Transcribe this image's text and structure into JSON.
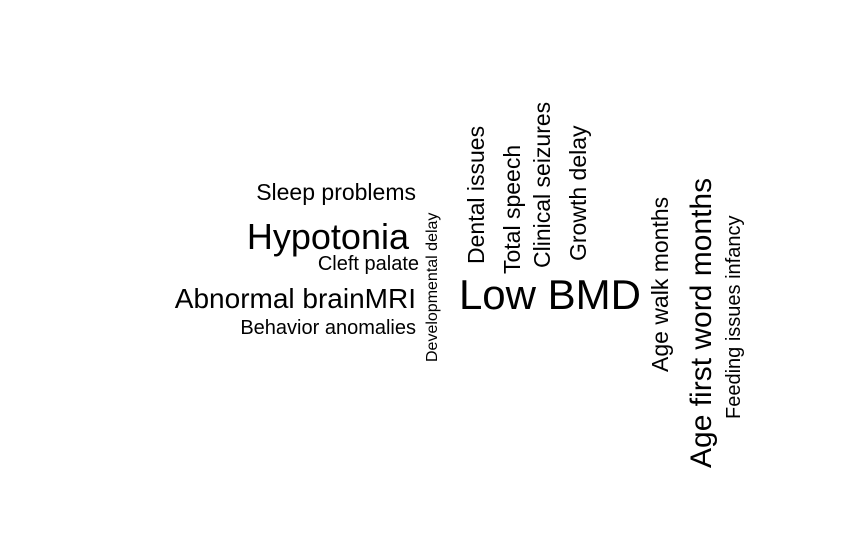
{
  "chart_data": {
    "type": "wordcloud",
    "words": [
      {
        "text": "Low BMD",
        "weight": 10,
        "orientation": "horizontal"
      },
      {
        "text": "Hypotonia",
        "weight": 8,
        "orientation": "horizontal"
      },
      {
        "text": "Age first word months",
        "weight": 8,
        "orientation": "vertical"
      },
      {
        "text": "Abnormal brainMRI",
        "weight": 6.5,
        "orientation": "horizontal"
      },
      {
        "text": "Age walk months",
        "weight": 5.5,
        "orientation": "vertical"
      },
      {
        "text": "Sleep problems",
        "weight": 5.5,
        "orientation": "horizontal"
      },
      {
        "text": "Dental issues",
        "weight": 5.5,
        "orientation": "vertical"
      },
      {
        "text": "Total speech",
        "weight": 5.5,
        "orientation": "vertical"
      },
      {
        "text": "Clinical seizures",
        "weight": 5.5,
        "orientation": "vertical"
      },
      {
        "text": "Growth delay",
        "weight": 5.5,
        "orientation": "vertical"
      },
      {
        "text": "Cleft palate",
        "weight": 5,
        "orientation": "horizontal"
      },
      {
        "text": "Behavior anomalies",
        "weight": 5,
        "orientation": "horizontal"
      },
      {
        "text": "Feeding issues infancy",
        "weight": 5,
        "orientation": "vertical"
      },
      {
        "text": "Developmental delay",
        "weight": 4,
        "orientation": "vertical"
      }
    ]
  }
}
